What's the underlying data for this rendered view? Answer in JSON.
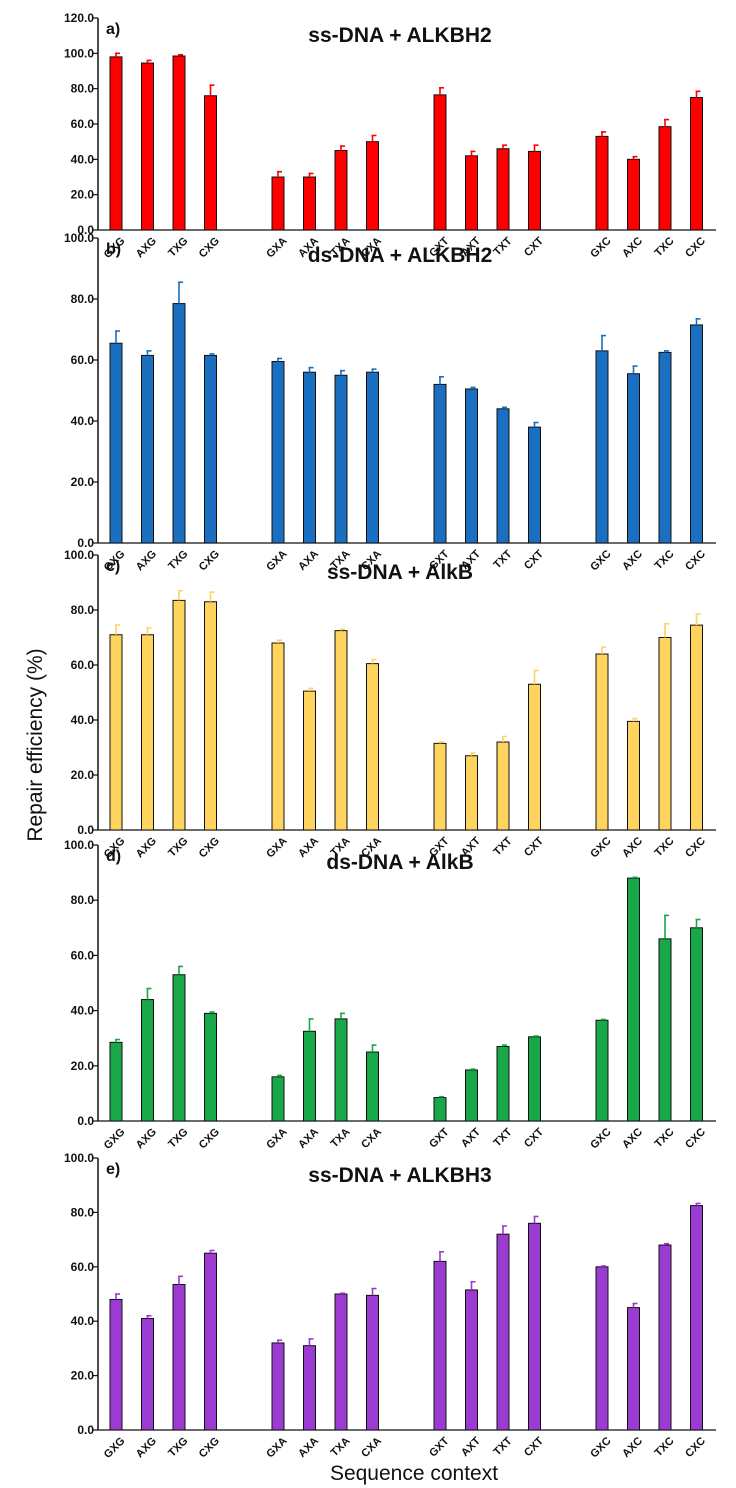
{
  "figure": {
    "ylabel": "Repair efficiency (%)",
    "xlabel": "Sequence context"
  },
  "chart_data": [
    {
      "type": "bar",
      "panel_label": "a)",
      "title": "ss-DNA + ALKBH2",
      "ylim": [
        0,
        120
      ],
      "yticks": [
        "0.0",
        "20.0",
        "40.0",
        "60.0",
        "80.0",
        "100.0",
        "120.0"
      ],
      "color": "#ff0000",
      "groups": [
        {
          "categories": [
            "GXG",
            "AXG",
            "TXG",
            "CXG"
          ],
          "values": [
            98,
            94.5,
            98.5,
            76
          ],
          "errors": [
            2,
            1.5,
            0.7,
            6
          ]
        },
        {
          "categories": [
            "GXA",
            "AXA",
            "TXA",
            "CXA"
          ],
          "values": [
            30,
            30,
            45,
            50
          ],
          "errors": [
            3,
            2,
            2.5,
            3.5
          ]
        },
        {
          "categories": [
            "GXT",
            "AXT",
            "TXT",
            "CXT"
          ],
          "values": [
            76.5,
            42,
            46,
            44.5
          ],
          "errors": [
            4,
            2.5,
            2,
            3.5
          ]
        },
        {
          "categories": [
            "GXC",
            "AXC",
            "TXC",
            "CXC"
          ],
          "values": [
            53,
            40,
            58.5,
            75
          ],
          "errors": [
            2.5,
            1.5,
            4,
            3.5
          ]
        }
      ]
    },
    {
      "type": "bar",
      "panel_label": "b)",
      "title": "ds-DNA + ALKBH2",
      "ylim": [
        0,
        100
      ],
      "yticks": [
        "0.0",
        "20.0",
        "40.0",
        "60.0",
        "80.0",
        "100.0"
      ],
      "color": "#1b6fc1",
      "groups": [
        {
          "categories": [
            "GXG",
            "AXG",
            "TXG",
            "CXG"
          ],
          "values": [
            65.5,
            61.5,
            78.5,
            61.5
          ],
          "errors": [
            4,
            1.5,
            7,
            0.5
          ]
        },
        {
          "categories": [
            "GXA",
            "AXA",
            "TXA",
            "CXA"
          ],
          "values": [
            59.5,
            56,
            55,
            56
          ],
          "errors": [
            1,
            1.5,
            1.5,
            1
          ]
        },
        {
          "categories": [
            "GXT",
            "AXT",
            "TXT",
            "CXT"
          ],
          "values": [
            52,
            50.5,
            44,
            38
          ],
          "errors": [
            2.5,
            0.5,
            0.5,
            1.5
          ]
        },
        {
          "categories": [
            "GXC",
            "AXC",
            "TXC",
            "CXC"
          ],
          "values": [
            63,
            55.5,
            62.5,
            71.5
          ],
          "errors": [
            5,
            2.5,
            0.5,
            2
          ]
        }
      ]
    },
    {
      "type": "bar",
      "panel_label": "c)",
      "title": "ss-DNA + AlkB",
      "ylim": [
        0,
        100
      ],
      "yticks": [
        "0.0",
        "20.0",
        "40.0",
        "60.0",
        "80.0",
        "100.0"
      ],
      "color": "#fed45e",
      "groups": [
        {
          "categories": [
            "GXG",
            "AXG",
            "TXG",
            "CXG"
          ],
          "values": [
            71,
            71,
            83.5,
            83
          ],
          "errors": [
            3.5,
            2.5,
            3.5,
            3.5
          ]
        },
        {
          "categories": [
            "GXA",
            "AXA",
            "TXA",
            "CXA"
          ],
          "values": [
            68,
            50.5,
            72.5,
            60.5
          ],
          "errors": [
            1,
            1,
            0.5,
            1.5
          ]
        },
        {
          "categories": [
            "GXT",
            "AXT",
            "TXT",
            "CXT"
          ],
          "values": [
            31.5,
            27,
            32,
            53
          ],
          "errors": [
            0.5,
            1,
            2,
            5
          ]
        },
        {
          "categories": [
            "GXC",
            "AXC",
            "TXC",
            "CXC"
          ],
          "values": [
            64,
            39.5,
            70,
            74.5
          ],
          "errors": [
            2.5,
            1,
            5,
            4
          ]
        }
      ]
    },
    {
      "type": "bar",
      "panel_label": "d)",
      "title": "ds-DNA + AlkB",
      "ylim": [
        0,
        100
      ],
      "yticks": [
        "0.0",
        "20.0",
        "40.0",
        "60.0",
        "80.0",
        "100.0"
      ],
      "color": "#18a84a",
      "groups": [
        {
          "categories": [
            "GXG",
            "AXG",
            "TXG",
            "CXG"
          ],
          "values": [
            28.5,
            44,
            53,
            39
          ],
          "errors": [
            1,
            4,
            3,
            0.5
          ]
        },
        {
          "categories": [
            "GXA",
            "AXA",
            "TXA",
            "CXA"
          ],
          "values": [
            16,
            32.5,
            37,
            25
          ],
          "errors": [
            0.5,
            4.5,
            2,
            2.5
          ]
        },
        {
          "categories": [
            "GXT",
            "AXT",
            "TXT",
            "CXT"
          ],
          "values": [
            8.5,
            18.5,
            27,
            30.5
          ],
          "errors": [
            0.3,
            0.3,
            0.5,
            0.3
          ]
        },
        {
          "categories": [
            "GXC",
            "AXC",
            "TXC",
            "CXC"
          ],
          "values": [
            36.5,
            88,
            66,
            70
          ],
          "errors": [
            0.3,
            0.3,
            8.5,
            3
          ]
        }
      ]
    },
    {
      "type": "bar",
      "panel_label": "e)",
      "title": "ss-DNA + ALKBH3",
      "ylim": [
        0,
        100
      ],
      "yticks": [
        "0.0",
        "20.0",
        "40.0",
        "60.0",
        "80.0",
        "100.0"
      ],
      "color": "#9b3bd1",
      "groups": [
        {
          "categories": [
            "GXG",
            "AXG",
            "TXG",
            "CXG"
          ],
          "values": [
            48,
            41,
            53.5,
            65
          ],
          "errors": [
            2,
            1,
            3,
            1
          ]
        },
        {
          "categories": [
            "GXA",
            "AXA",
            "TXA",
            "CXA"
          ],
          "values": [
            32,
            31,
            50,
            49.5
          ],
          "errors": [
            1,
            2.5,
            0.3,
            2.5
          ]
        },
        {
          "categories": [
            "GXT",
            "AXT",
            "TXT",
            "CXT"
          ],
          "values": [
            62,
            51.5,
            72,
            76
          ],
          "errors": [
            3.5,
            3,
            3,
            2.5
          ]
        },
        {
          "categories": [
            "GXC",
            "AXC",
            "TXC",
            "CXC"
          ],
          "values": [
            60,
            45,
            68,
            82.5
          ],
          "errors": [
            0.3,
            1.5,
            0.5,
            0.8
          ]
        }
      ]
    }
  ]
}
